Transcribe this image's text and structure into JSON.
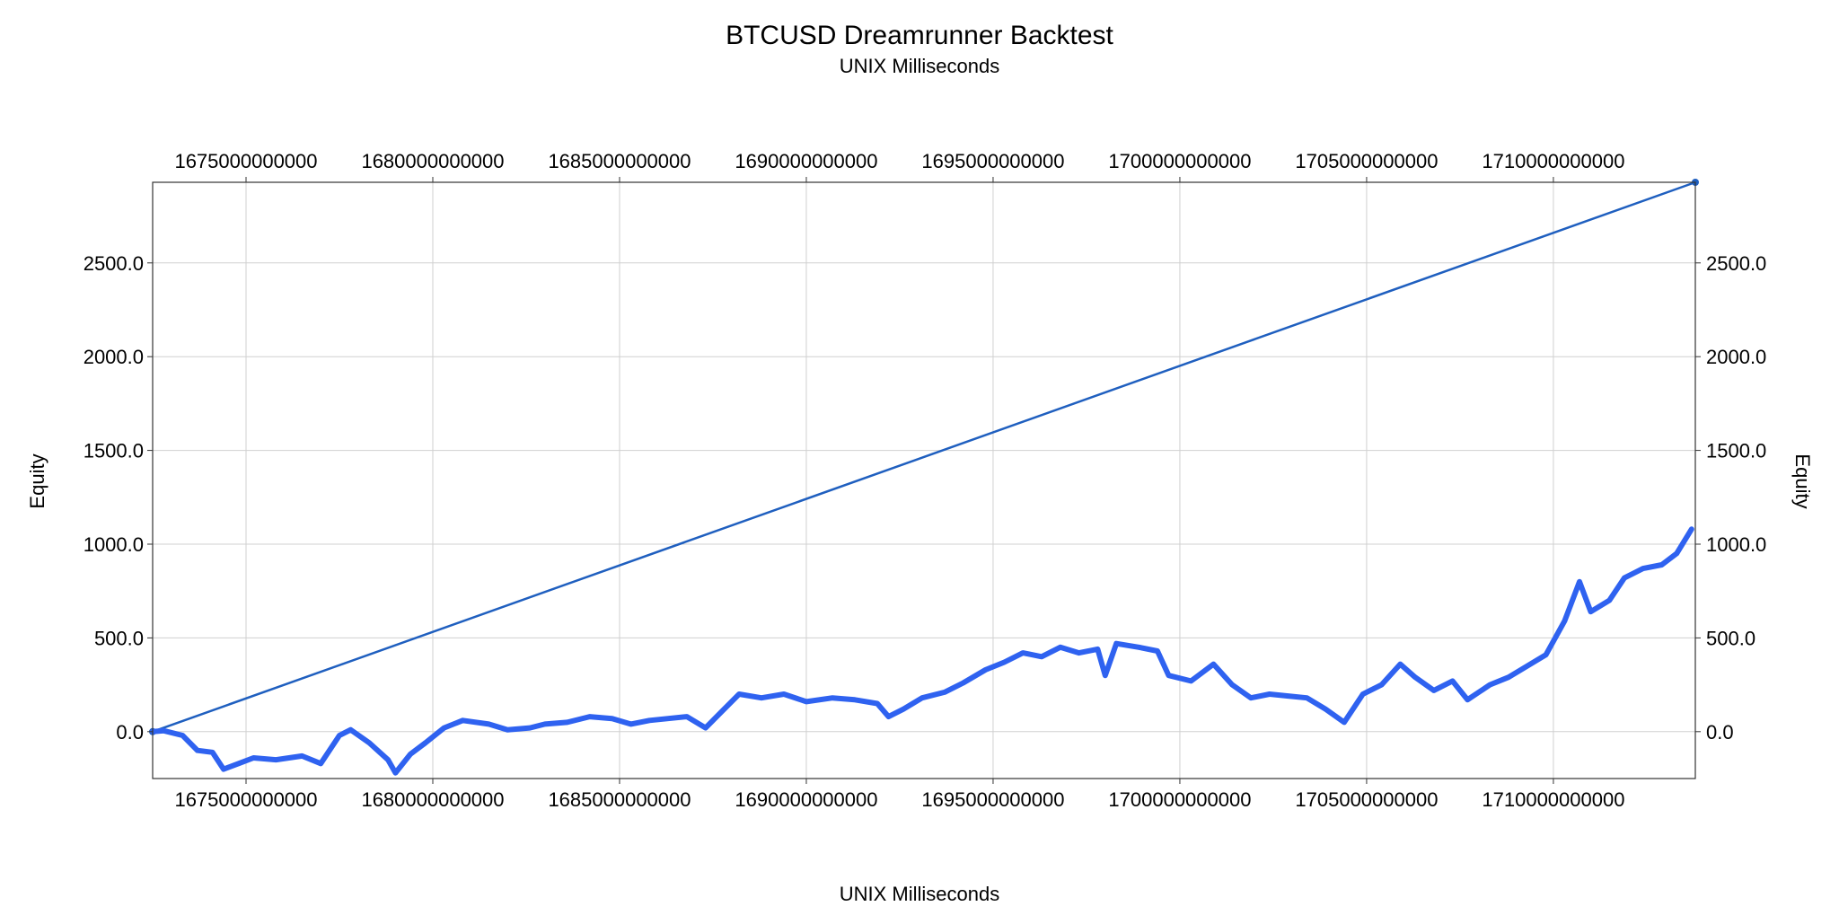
{
  "chart_data": {
    "type": "line",
    "title": "BTCUSD Dreamrunner Backtest",
    "subtitle": "UNIX Milliseconds",
    "xlabel": "UNIX Milliseconds",
    "ylabel": "Equity",
    "ylabel_right": "Equity",
    "xlim": [
      1672500000000,
      1713800000000
    ],
    "ylim": [
      -250,
      2930
    ],
    "grid": true,
    "x_ticks": [
      1675000000000,
      1680000000000,
      1685000000000,
      1690000000000,
      1695000000000,
      1700000000000,
      1705000000000,
      1710000000000
    ],
    "x_tick_labels": [
      "1675000000000",
      "1680000000000",
      "1685000000000",
      "1690000000000",
      "1695000000000",
      "1700000000000",
      "1705000000000",
      "1710000000000"
    ],
    "y_ticks": [
      0,
      500,
      1000,
      1500,
      2000,
      2500
    ],
    "y_tick_labels": [
      "0.0",
      "500.0",
      "1000.0",
      "1500.0",
      "2000.0",
      "2500.0"
    ],
    "colors": {
      "line": "#1f5fbf",
      "equity": "#2f62f0",
      "grid": "#d0d0d0",
      "axis": "#333333"
    },
    "series": [
      {
        "style": "line",
        "x": [
          1672500000000,
          1713800000000
        ],
        "y": [
          0,
          2930
        ]
      },
      {
        "style": "thick-line",
        "x": [
          1672500000000,
          1672800000000,
          1673300000000,
          1673700000000,
          1674100000000,
          1674400000000,
          1674800000000,
          1675200000000,
          1675800000000,
          1676500000000,
          1677000000000,
          1677500000000,
          1677800000000,
          1678300000000,
          1678800000000,
          1679000000000,
          1679400000000,
          1679800000000,
          1680300000000,
          1680800000000,
          1681500000000,
          1682000000000,
          1682600000000,
          1683000000000,
          1683600000000,
          1684200000000,
          1684800000000,
          1685300000000,
          1685800000000,
          1686300000000,
          1686800000000,
          1687300000000,
          1687700000000,
          1688200000000,
          1688800000000,
          1689400000000,
          1690000000000,
          1690700000000,
          1691300000000,
          1691900000000,
          1692200000000,
          1692600000000,
          1693100000000,
          1693700000000,
          1694200000000,
          1694800000000,
          1695300000000,
          1695800000000,
          1696300000000,
          1696800000000,
          1697300000000,
          1697800000000,
          1698000000000,
          1698300000000,
          1698900000000,
          1699400000000,
          1699700000000,
          1700300000000,
          1700900000000,
          1701400000000,
          1701900000000,
          1702400000000,
          1702900000000,
          1703400000000,
          1703900000000,
          1704400000000,
          1704900000000,
          1705400000000,
          1705900000000,
          1706300000000,
          1706800000000,
          1707300000000,
          1707700000000,
          1708300000000,
          1708800000000,
          1709300000000,
          1709800000000,
          1710300000000,
          1710700000000,
          1711000000000,
          1711500000000,
          1711900000000,
          1712400000000,
          1712900000000,
          1713300000000,
          1713700000000
        ],
        "y": [
          0,
          5,
          -20,
          -100,
          -110,
          -200,
          -170,
          -140,
          -150,
          -130,
          -170,
          -20,
          10,
          -60,
          -150,
          -220,
          -120,
          -60,
          20,
          60,
          40,
          10,
          20,
          40,
          50,
          80,
          70,
          40,
          60,
          70,
          80,
          20,
          100,
          200,
          180,
          200,
          160,
          180,
          170,
          150,
          80,
          120,
          180,
          210,
          260,
          330,
          370,
          420,
          400,
          450,
          420,
          440,
          300,
          470,
          450,
          430,
          300,
          270,
          360,
          250,
          180,
          200,
          190,
          180,
          120,
          50,
          200,
          250,
          360,
          290,
          220,
          270,
          170,
          250,
          290,
          350,
          410,
          590,
          800,
          640,
          700,
          820,
          870,
          890,
          950,
          1080
        ]
      }
    ]
  }
}
